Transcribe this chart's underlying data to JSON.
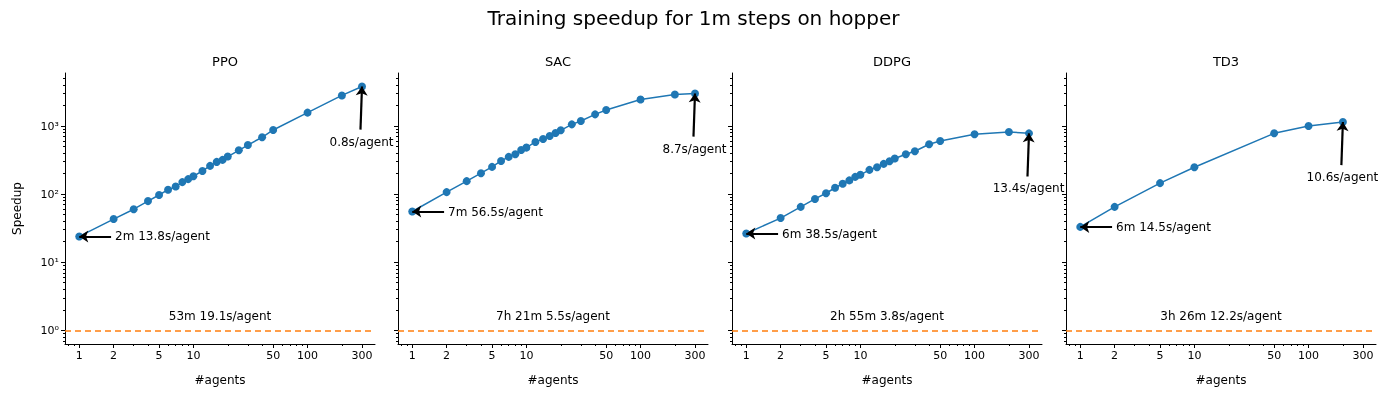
{
  "chart_data": [
    {
      "type": "line",
      "title": "PPO",
      "xlabel": "#agents",
      "ylabel": "Speedup",
      "color": "#1f77b4",
      "marker": "circle",
      "log": "xy",
      "x": [
        1,
        2,
        3,
        4,
        5,
        6,
        7,
        8,
        9,
        10,
        12,
        14,
        16,
        18,
        20,
        25,
        30,
        40,
        50,
        100,
        200,
        300
      ],
      "values": [
        23.9,
        43,
        60,
        79,
        97,
        116,
        129,
        150,
        166,
        183,
        219,
        260,
        297,
        318,
        356,
        440,
        525,
        683,
        874,
        1570,
        2810,
        3800
      ],
      "xlim": [
        0.75,
        390
      ],
      "xticks": [
        1,
        2,
        5,
        10,
        50,
        100,
        300
      ],
      "ylim": [
        0.63,
        6000
      ],
      "yticks": [
        {
          "value": 1,
          "label": "10⁰"
        },
        {
          "value": 10,
          "label": "10¹"
        },
        {
          "value": 100,
          "label": "10²"
        },
        {
          "value": 1000,
          "label": "10³"
        }
      ],
      "ref_lines": [
        {
          "axis": "y",
          "value": 1,
          "label": "53m 19.1s/agent",
          "color": "#ff7f0e",
          "line_style": "dashed"
        }
      ],
      "annotations": [
        "Training speedup for 1m steps on hopper",
        {
          "text": "2m 13.8s/agent",
          "x": 1,
          "y": 23.9
        },
        {
          "text": "0.8s/agent",
          "x": 300,
          "y": 3800
        }
      ]
    },
    {
      "type": "line",
      "title": "SAC",
      "xlabel": "#agents",
      "color": "#1f77b4",
      "marker": "circle",
      "log": "xy",
      "tick_labels": "x",
      "x": [
        1,
        2,
        3,
        4,
        5,
        6,
        7,
        8,
        9,
        10,
        12,
        14,
        16,
        18,
        20,
        25,
        30,
        40,
        50,
        100,
        200,
        300
      ],
      "values": [
        55.5,
        107,
        155,
        203,
        251,
        307,
        352,
        385,
        445,
        482,
        583,
        646,
        714,
        790,
        864,
        1057,
        1183,
        1482,
        1714,
        2455,
        2900,
        3000
      ],
      "xlim": [
        0.75,
        390
      ],
      "xticks": [
        1,
        2,
        5,
        10,
        50,
        100,
        300
      ],
      "ylim": [
        0.63,
        6000
      ],
      "yticks": [
        {
          "value": 1,
          "label": null
        },
        {
          "value": 10,
          "label": null
        },
        {
          "value": 100,
          "label": null
        },
        {
          "value": 1000,
          "label": null
        }
      ],
      "ref_lines": [
        {
          "axis": "y",
          "value": 1,
          "label": "7h 21m 5.5s/agent",
          "color": "#ff7f0e",
          "line_style": "dashed"
        }
      ],
      "annotations": [
        {
          "text": "7m 56.5s/agent",
          "x": 1,
          "y": 55.5
        },
        {
          "text": "8.7s/agent",
          "x": 300,
          "y": 3000
        }
      ]
    },
    {
      "type": "line",
      "title": "DDPG",
      "xlabel": "#agents",
      "color": "#1f77b4",
      "marker": "circle",
      "log": "xy",
      "tick_labels": "x",
      "x": [
        1,
        2,
        3,
        4,
        5,
        6,
        7,
        8,
        9,
        10,
        12,
        14,
        16,
        18,
        20,
        25,
        30,
        40,
        50,
        100,
        200,
        300
      ],
      "values": [
        26.4,
        44.5,
        65,
        85,
        103,
        124,
        142,
        159,
        179,
        192,
        227,
        248,
        278,
        304,
        333,
        385,
        426,
        540,
        603,
        755,
        817,
        780
      ],
      "xlim": [
        0.75,
        390
      ],
      "xticks": [
        1,
        2,
        5,
        10,
        50,
        100,
        300
      ],
      "ylim": [
        0.63,
        6000
      ],
      "yticks": [
        {
          "value": 1,
          "label": null
        },
        {
          "value": 10,
          "label": null
        },
        {
          "value": 100,
          "label": null
        },
        {
          "value": 1000,
          "label": null
        }
      ],
      "ref_lines": [
        {
          "axis": "y",
          "value": 1,
          "label": "2h 55m 3.8s/agent",
          "color": "#ff7f0e",
          "line_style": "dashed"
        }
      ],
      "annotations": [
        {
          "text": "6m 38.5s/agent",
          "x": 1,
          "y": 26.4
        },
        {
          "text": "13.4s/agent",
          "x": 300,
          "y": 780
        }
      ]
    },
    {
      "type": "line",
      "title": "TD3",
      "xlabel": "#agents",
      "color": "#1f77b4",
      "marker": "circle",
      "log": "xy",
      "tick_labels": "x",
      "x": [
        1,
        2,
        5,
        10,
        50,
        100,
        200
      ],
      "values": [
        33,
        65,
        145,
        248,
        781,
        1000,
        1145
      ],
      "xlim": [
        0.75,
        390
      ],
      "xticks": [
        1,
        2,
        5,
        10,
        50,
        100,
        300
      ],
      "ylim": [
        0.63,
        6000
      ],
      "yticks": [
        {
          "value": 1,
          "label": null
        },
        {
          "value": 10,
          "label": null
        },
        {
          "value": 100,
          "label": null
        },
        {
          "value": 1000,
          "label": null
        }
      ],
      "ref_lines": [
        {
          "axis": "y",
          "value": 1,
          "label": "3h 26m 12.2s/agent",
          "color": "#ff7f0e",
          "line_style": "dashed"
        }
      ],
      "annotations": [
        {
          "text": "6m 14.5s/agent",
          "x": 1,
          "y": 33
        },
        {
          "text": "10.6s/agent",
          "x": 200,
          "y": 1145
        }
      ]
    }
  ]
}
